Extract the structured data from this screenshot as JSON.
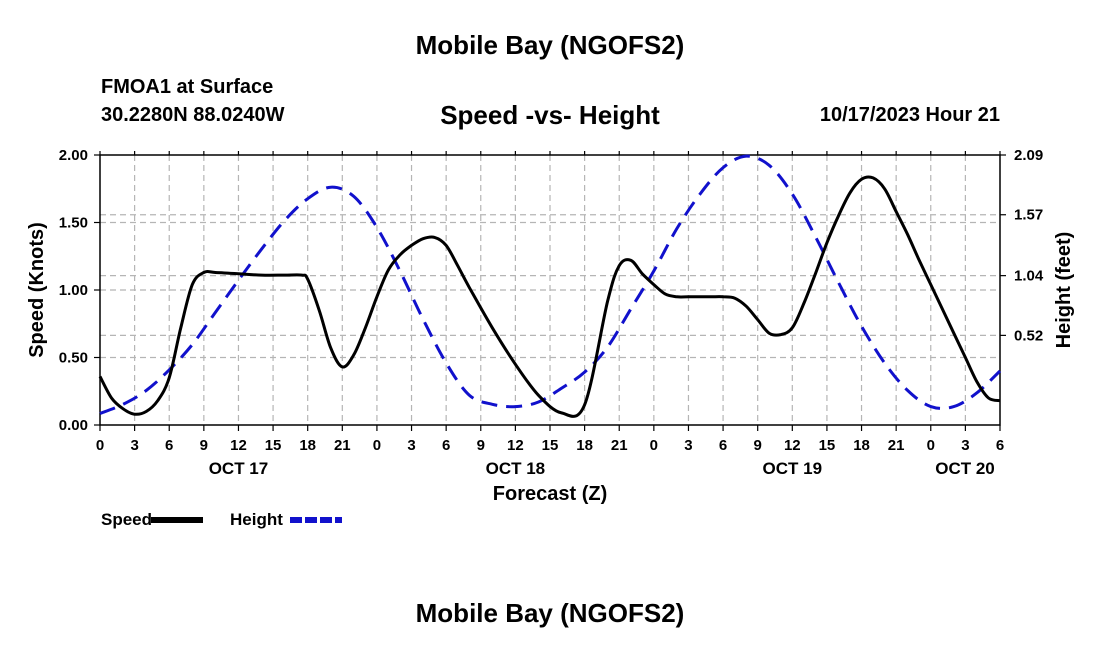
{
  "header": {
    "title": "Mobile Bay (NGOFS2)",
    "station": "FMOA1 at Surface",
    "coords": "30.2280N  88.0240W",
    "chart_title": "Speed -vs- Height",
    "time": "10/17/2023 Hour 21"
  },
  "footer": {
    "title": "Mobile Bay (NGOFS2)"
  },
  "chart_data": {
    "type": "line",
    "title": "Speed -vs- Height",
    "xlabel": "Forecast (Z)",
    "ylabel": "Speed (Knots)",
    "ylabel_right": "Height (feet)",
    "x_unit": "hours from OCT 17 00Z",
    "xlim": [
      0,
      78
    ],
    "ylim": [
      0,
      2.0
    ],
    "ylim_right": [
      -0.26,
      2.09
    ],
    "x_tick_labels": [
      "0",
      "3",
      "6",
      "9",
      "12",
      "15",
      "18",
      "21",
      "0",
      "3",
      "6",
      "9",
      "12",
      "15",
      "18",
      "21",
      "0",
      "3",
      "6",
      "9",
      "12",
      "15",
      "18",
      "21",
      "0",
      "3",
      "6"
    ],
    "date_labels": [
      {
        "label": "OCT 17",
        "hour": 12
      },
      {
        "label": "OCT 18",
        "hour": 36
      },
      {
        "label": "OCT 19",
        "hour": 60
      },
      {
        "label": "OCT 20",
        "hour": 78
      }
    ],
    "y_ticks": [
      "0.00",
      "0.50",
      "1.00",
      "1.50",
      "2.00"
    ],
    "y_ticks_right": [
      "0.52",
      "1.04",
      "1.57",
      "2.09"
    ],
    "grid": true,
    "legend_position": "bottom-left",
    "series": [
      {
        "name": "Speed",
        "axis": "left",
        "color": "#000000",
        "style": "solid",
        "x": [
          0,
          1,
          2,
          3,
          4,
          5,
          6,
          7,
          8,
          9,
          10,
          12,
          14,
          16,
          17.5,
          18,
          19,
          20,
          21,
          22,
          23,
          24,
          25,
          26,
          27,
          28,
          29,
          30,
          31,
          32,
          34,
          36,
          38,
          40,
          42,
          44,
          45,
          46,
          47,
          48,
          49,
          50,
          51,
          52,
          53,
          54,
          55,
          56,
          57,
          58,
          59,
          60,
          61,
          62,
          63,
          64,
          65,
          66,
          67,
          68,
          69,
          70,
          71,
          72,
          73,
          74,
          75,
          76,
          77,
          78
        ],
        "values": [
          0.36,
          0.2,
          0.12,
          0.08,
          0.1,
          0.18,
          0.35,
          0.72,
          1.04,
          1.13,
          1.13,
          1.12,
          1.11,
          1.11,
          1.11,
          1.08,
          0.85,
          0.57,
          0.43,
          0.52,
          0.72,
          0.95,
          1.15,
          1.26,
          1.33,
          1.38,
          1.39,
          1.33,
          1.18,
          1.02,
          0.72,
          0.45,
          0.22,
          0.09,
          0.15,
          0.92,
          1.18,
          1.22,
          1.12,
          1.04,
          0.97,
          0.95,
          0.95,
          0.95,
          0.95,
          0.95,
          0.94,
          0.88,
          0.78,
          0.68,
          0.67,
          0.72,
          0.9,
          1.12,
          1.35,
          1.55,
          1.72,
          1.82,
          1.83,
          1.75,
          1.58,
          1.41,
          1.22,
          1.04,
          0.86,
          0.68,
          0.5,
          0.32,
          0.2,
          0.18
        ]
      },
      {
        "name": "Height",
        "axis": "right",
        "color": "#1111cc",
        "style": "dashed",
        "x": [
          0,
          2,
          4,
          6,
          8,
          10,
          12,
          14,
          16,
          18,
          20,
          22,
          24,
          26,
          28,
          30,
          32,
          34,
          36,
          38,
          40,
          42,
          44,
          46,
          48,
          50,
          52,
          54,
          56,
          58,
          60,
          62,
          64,
          66,
          68,
          70,
          72,
          74,
          76,
          78
        ],
        "values": [
          -0.16,
          -0.08,
          0.04,
          0.22,
          0.44,
          0.72,
          1.0,
          1.27,
          1.52,
          1.71,
          1.81,
          1.73,
          1.46,
          1.08,
          0.66,
          0.28,
          0.0,
          -0.08,
          -0.1,
          -0.06,
          0.06,
          0.2,
          0.42,
          0.75,
          1.08,
          1.45,
          1.75,
          1.98,
          2.08,
          2.0,
          1.75,
          1.38,
          0.98,
          0.6,
          0.28,
          0.04,
          -0.1,
          -0.1,
          0.02,
          0.21
        ]
      }
    ]
  }
}
